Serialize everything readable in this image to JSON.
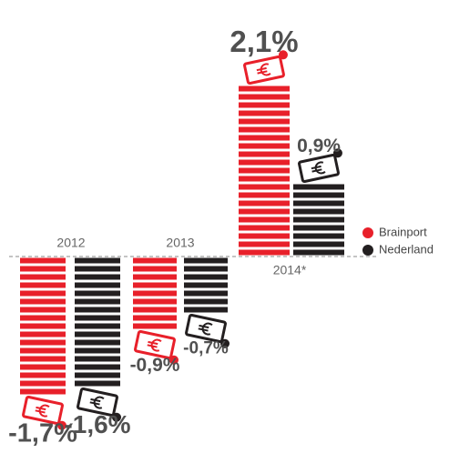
{
  "chart_data": {
    "type": "bar",
    "categories": [
      "2012",
      "2013",
      "2014*"
    ],
    "series": [
      {
        "name": "Brainport",
        "color": "#e8202a",
        "values": [
          -1.7,
          -0.9,
          2.1
        ],
        "value_labels": [
          "-1,7%",
          "-0,9%",
          "2,1%"
        ]
      },
      {
        "name": "Nederland",
        "color": "#231f20",
        "values": [
          -1.6,
          -0.7,
          0.9
        ],
        "value_labels": [
          "-1,6%",
          "-0,7%",
          "0,9%"
        ]
      }
    ],
    "legend": "right"
  }
}
